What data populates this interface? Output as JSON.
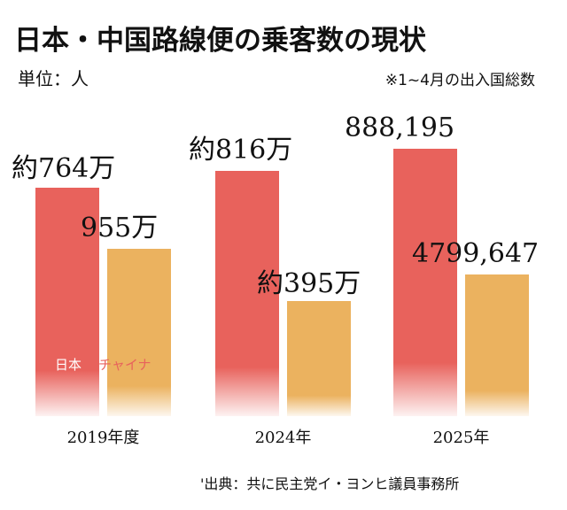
{
  "chart_data": {
    "type": "bar",
    "title": "日本・中国路線便の乗客数の現状",
    "unit_label": "単位：人",
    "note": "※1~4月の出入国総数",
    "source": "'出典：共に民主党イ・ヨンヒ議員事務所",
    "categories": [
      "2019年度",
      "2024年",
      "2025年"
    ],
    "series": [
      {
        "name": "日本",
        "color": "#e8625c",
        "values": [
          7640000,
          8160000,
          888195
        ],
        "labels": [
          "約764万",
          "約816万",
          "888,195"
        ]
      },
      {
        "name": "チャイナ",
        "color": "#ebb25f",
        "values": [
          9550000,
          3950000,
          4799647
        ],
        "labels": [
          "955万",
          "約395万",
          "4799,647"
        ]
      }
    ],
    "legend": {
      "placement": "inside-bottom-left",
      "items": [
        {
          "name": "日本",
          "color": "#ffffff"
        },
        {
          "name": "チャイナ",
          "color": "#e8625c"
        }
      ]
    },
    "axes": {
      "y_visible": false,
      "grid": false
    }
  }
}
